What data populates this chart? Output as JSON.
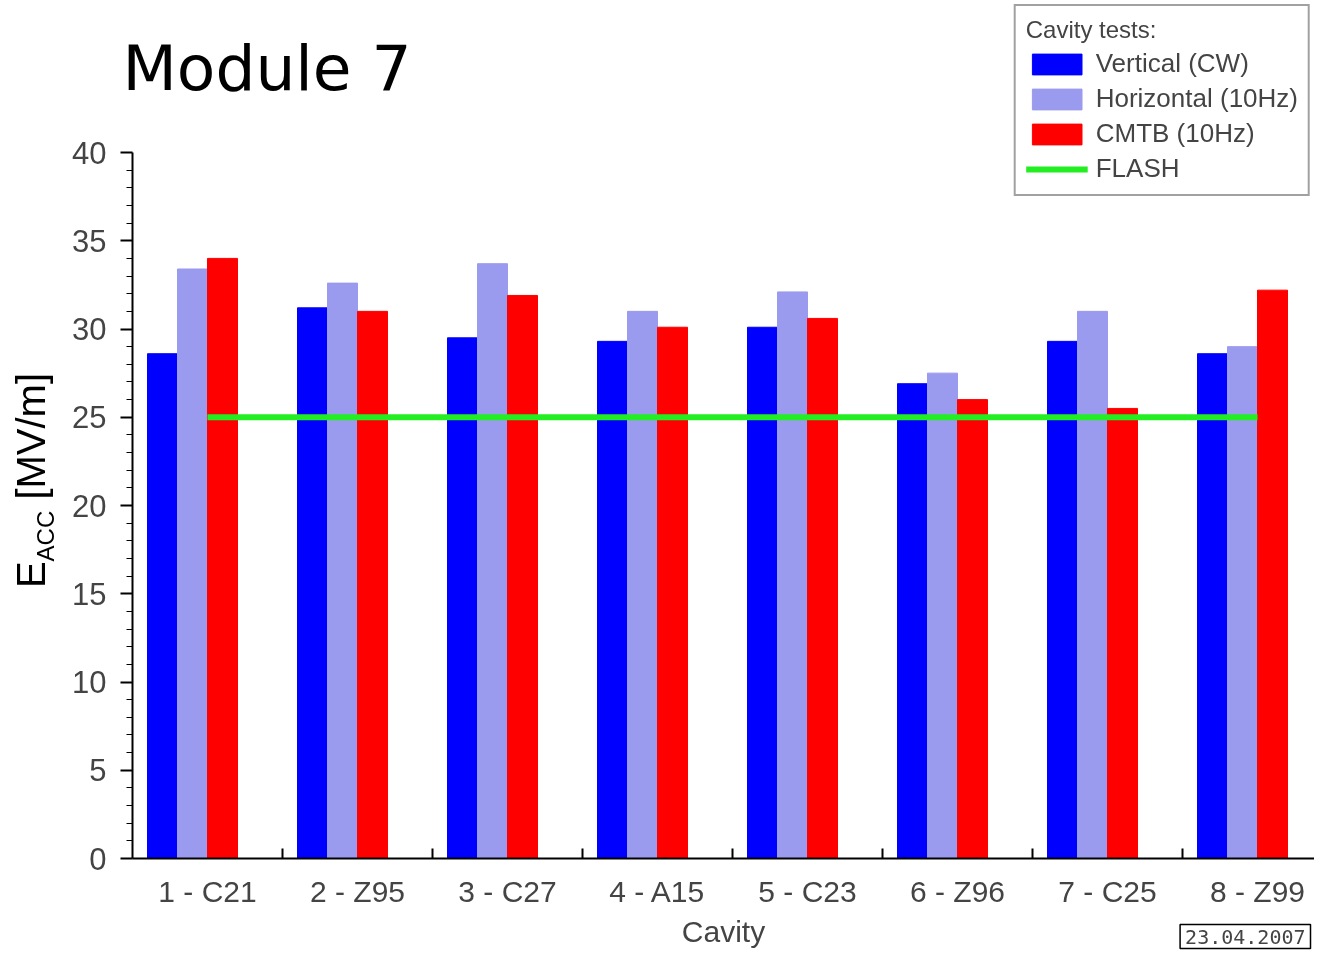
{
  "chart_data": {
    "type": "bar",
    "title": "Module 7",
    "xlabel": "Cavity",
    "ylabel": "E$_{ACC}$ [MV/m]",
    "legend_title": "Cavity tests:",
    "categories": [
      "1 - C21",
      "2 - Z95",
      "3 - C27",
      "4 - A15",
      "5 - C23",
      "6 - Z96",
      "7 - C25",
      "8 - Z99"
    ],
    "series": [
      {
        "name": "Vertical (CW)",
        "color": "#0000ff",
        "values": [
          28.6,
          31.2,
          29.5,
          29.3,
          30.1,
          26.9,
          29.3,
          28.6
        ]
      },
      {
        "name": "Horizontal (10Hz)",
        "color": "#9a9aee",
        "values": [
          33.4,
          32.6,
          33.7,
          31.0,
          32.1,
          27.5,
          31.0,
          29.0
        ]
      },
      {
        "name": "CMTB (10Hz)",
        "color": "#ff0000",
        "values": [
          34.0,
          31.0,
          31.9,
          30.1,
          30.6,
          26.0,
          25.5,
          32.2
        ]
      },
      {
        "name": "FLASH",
        "type": "line",
        "color": "#22ee22",
        "values": [
          25,
          25,
          25,
          25,
          25,
          25,
          25,
          25
        ]
      }
    ],
    "ylim": [
      0,
      40
    ],
    "yticks": [
      0,
      {
        "value": 1,
        "label": null
      },
      {
        "value": 2,
        "label": null
      },
      {
        "value": 3,
        "label": null
      },
      {
        "value": 4,
        "label": null
      },
      5,
      {
        "value": 6,
        "label": null
      },
      {
        "value": 7,
        "label": null
      },
      {
        "value": 8,
        "label": null
      },
      {
        "value": 9,
        "label": null
      },
      10,
      {
        "value": 11,
        "label": null
      },
      {
        "value": 12,
        "label": null
      },
      {
        "value": 13,
        "label": null
      },
      {
        "value": 14,
        "label": null
      },
      15,
      {
        "value": 16,
        "label": null
      },
      {
        "value": 17,
        "label": null
      },
      {
        "value": 18,
        "label": null
      },
      {
        "value": 19,
        "label": null
      },
      20,
      {
        "value": 21,
        "label": null
      },
      {
        "value": 22,
        "label": null
      },
      {
        "value": 23,
        "label": null
      },
      {
        "value": 24,
        "label": null
      },
      25,
      {
        "value": 26,
        "label": null
      },
      {
        "value": 27,
        "label": null
      },
      {
        "value": 28,
        "label": null
      },
      {
        "value": 29,
        "label": null
      },
      30,
      {
        "value": 31,
        "label": null
      },
      {
        "value": 32,
        "label": null
      },
      {
        "value": 33,
        "label": null
      },
      {
        "value": 34,
        "label": null
      },
      35,
      {
        "value": 36,
        "label": null
      },
      {
        "value": 37,
        "label": null
      },
      {
        "value": 38,
        "label": null
      },
      {
        "value": 39,
        "label": null
      },
      40
    ],
    "grid": false,
    "legend": "top right",
    "annotations": [
      "23.04.2007"
    ]
  }
}
